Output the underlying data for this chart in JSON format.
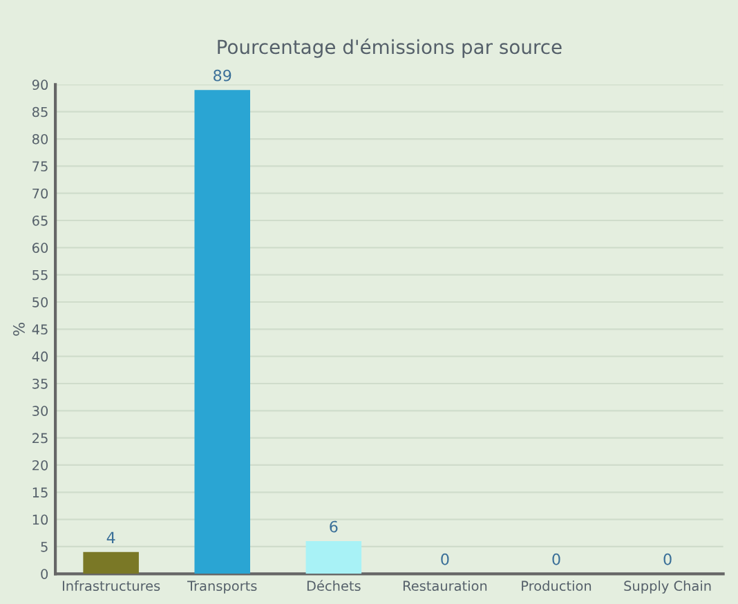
{
  "chart_data": {
    "type": "bar",
    "title": "Pourcentage d'émissions par source",
    "ylabel": "%",
    "categories": [
      "Infrastructures",
      "Transports",
      "Déchets",
      "Restauration",
      "Production",
      "Supply Chain"
    ],
    "values": [
      4,
      89,
      6,
      0,
      0,
      0
    ],
    "colors": [
      "#7a7826",
      "#2aa5d3",
      "#a8f2f6",
      "#7a9a8a",
      "#7a9a8a",
      "#7a9a8a"
    ],
    "ylim": [
      0,
      90
    ],
    "yticks": [
      0,
      5,
      10,
      15,
      20,
      25,
      30,
      35,
      40,
      45,
      50,
      55,
      60,
      65,
      70,
      75,
      80,
      85,
      90
    ],
    "grid": "y",
    "data_labels": true
  }
}
